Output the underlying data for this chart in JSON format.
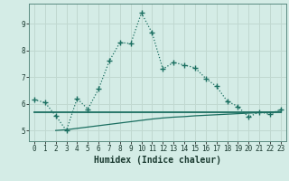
{
  "xlabel": "Humidex (Indice chaleur)",
  "bg_color": "#d4ece6",
  "grid_color": "#c0d8d0",
  "line_color": "#1a6e60",
  "xlim": [
    -0.5,
    23.5
  ],
  "ylim": [
    4.6,
    9.75
  ],
  "yticks": [
    5,
    6,
    7,
    8,
    9
  ],
  "xticks": [
    0,
    1,
    2,
    3,
    4,
    5,
    6,
    7,
    8,
    9,
    10,
    11,
    12,
    13,
    14,
    15,
    16,
    17,
    18,
    19,
    20,
    21,
    22,
    23
  ],
  "curve1_x": [
    0,
    1,
    2,
    3,
    4,
    5,
    6,
    7,
    8,
    9,
    10,
    11,
    12,
    13,
    14,
    15,
    16,
    17,
    18,
    19,
    20,
    21,
    22,
    23
  ],
  "curve1_y": [
    6.15,
    6.05,
    5.55,
    5.0,
    6.2,
    5.8,
    6.55,
    7.6,
    8.3,
    8.25,
    9.4,
    8.65,
    7.3,
    7.55,
    7.45,
    7.35,
    6.95,
    6.65,
    6.1,
    5.9,
    5.5,
    5.7,
    5.6,
    5.8
  ],
  "curve2_x": [
    0,
    1,
    2,
    3,
    4,
    5,
    6,
    7,
    8,
    9,
    10,
    11,
    12,
    13,
    14,
    15,
    16,
    17,
    18,
    19,
    20,
    21,
    22,
    23
  ],
  "curve2_y": [
    5.68,
    5.68,
    5.68,
    5.68,
    5.68,
    5.68,
    5.68,
    5.68,
    5.68,
    5.68,
    5.68,
    5.68,
    5.68,
    5.68,
    5.68,
    5.68,
    5.68,
    5.68,
    5.68,
    5.68,
    5.68,
    5.68,
    5.68,
    5.68
  ],
  "curve3_x": [
    2,
    3,
    4,
    5,
    6,
    7,
    8,
    9,
    10,
    11,
    12,
    13,
    14,
    15,
    16,
    17,
    18,
    19,
    20,
    21,
    22,
    23
  ],
  "curve3_y": [
    5.0,
    5.03,
    5.08,
    5.13,
    5.18,
    5.23,
    5.28,
    5.33,
    5.38,
    5.43,
    5.47,
    5.5,
    5.52,
    5.55,
    5.57,
    5.59,
    5.61,
    5.63,
    5.65,
    5.67,
    5.69,
    5.71
  ]
}
